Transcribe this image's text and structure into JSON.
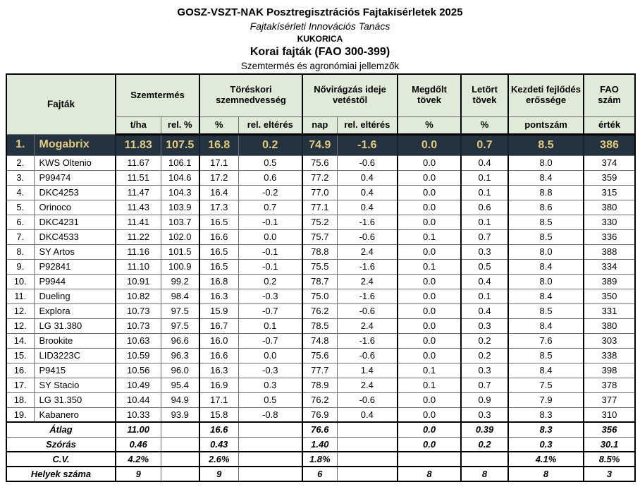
{
  "titles": {
    "line1": "GOSZ-VSZT-NAK Posztregisztrációs Fajtakísérletek 2025",
    "line2": "Fajtakísérleti Innovációs Tanács",
    "line3": "KUKORICA",
    "line4": "Korai fajták (FAO 300-399)",
    "line5": "Szemtermés és agronómiai jellemzők"
  },
  "table": {
    "header": {
      "fajtak": "Fajták",
      "groups": [
        {
          "label": "Szemtermés",
          "sub": [
            "t/ha",
            "rel. %"
          ]
        },
        {
          "label": "Töréskori szemnedvesség",
          "sub": [
            "%",
            "rel. eltérés"
          ]
        },
        {
          "label": "Nővirágzás ideje vetéstől",
          "sub": [
            "nap",
            "rel. eltérés"
          ]
        },
        {
          "label": "Megdőlt tövek",
          "sub": [
            "%"
          ]
        },
        {
          "label": "Letört tövek",
          "sub": [
            "%"
          ]
        },
        {
          "label": "Kezdeti fejlődés erőssége",
          "sub": [
            "pontszám"
          ]
        },
        {
          "label": "FAO szám",
          "sub": [
            "érték"
          ]
        }
      ]
    },
    "rows": [
      {
        "rank": "1.",
        "name": "Mogabrix",
        "highlight": true,
        "values": [
          "11.83",
          "107.5",
          "16.8",
          "0.2",
          "74.9",
          "-1.6",
          "0.0",
          "0.7",
          "8.5",
          "386"
        ]
      },
      {
        "rank": "2.",
        "name": "KWS Oltenio",
        "highlight": false,
        "values": [
          "11.67",
          "106.1",
          "17.1",
          "0.5",
          "75.6",
          "-0.6",
          "0.0",
          "0.4",
          "8.0",
          "374"
        ]
      },
      {
        "rank": "3.",
        "name": "P99474",
        "highlight": false,
        "values": [
          "11.51",
          "104.6",
          "17.2",
          "0.6",
          "77.2",
          "0.4",
          "0.0",
          "0.1",
          "8.4",
          "359"
        ]
      },
      {
        "rank": "4.",
        "name": "DKC4253",
        "highlight": false,
        "values": [
          "11.47",
          "104.3",
          "16.4",
          "-0.2",
          "77.0",
          "0.4",
          "0.0",
          "0.1",
          "8.8",
          "315"
        ]
      },
      {
        "rank": "5.",
        "name": "Orinoco",
        "highlight": false,
        "values": [
          "11.43",
          "103.9",
          "17.3",
          "0.7",
          "77.1",
          "0.4",
          "0.0",
          "0.6",
          "8.6",
          "380"
        ]
      },
      {
        "rank": "6.",
        "name": "DKC4231",
        "highlight": false,
        "values": [
          "11.41",
          "103.7",
          "16.5",
          "-0.1",
          "75.2",
          "-1.6",
          "0.0",
          "0.1",
          "8.5",
          "330"
        ]
      },
      {
        "rank": "7.",
        "name": "DKC4533",
        "highlight": false,
        "values": [
          "11.22",
          "102.0",
          "16.6",
          "0.0",
          "75.7",
          "-0.6",
          "0.1",
          "0.7",
          "8.5",
          "336"
        ]
      },
      {
        "rank": "8.",
        "name": "SY Artos",
        "highlight": false,
        "values": [
          "11.16",
          "101.5",
          "16.5",
          "-0.1",
          "78.8",
          "2.4",
          "0.0",
          "0.3",
          "8.0",
          "388"
        ]
      },
      {
        "rank": "9.",
        "name": "P92841",
        "highlight": false,
        "values": [
          "11.10",
          "100.9",
          "16.5",
          "-0.1",
          "75.5",
          "-1.6",
          "0.1",
          "0.5",
          "8.4",
          "334"
        ]
      },
      {
        "rank": "10.",
        "name": "P9944",
        "highlight": false,
        "values": [
          "10.91",
          "99.2",
          "16.8",
          "0.2",
          "78.7",
          "2.4",
          "0.0",
          "0.4",
          "8.0",
          "389"
        ]
      },
      {
        "rank": "11.",
        "name": "Dueling",
        "highlight": false,
        "values": [
          "10.82",
          "98.4",
          "16.3",
          "-0.3",
          "75.0",
          "-1.6",
          "0.0",
          "0.1",
          "8.4",
          "350"
        ]
      },
      {
        "rank": "12.",
        "name": "Explora",
        "highlight": false,
        "values": [
          "10.73",
          "97.5",
          "15.9",
          "-0.7",
          "76.2",
          "-0.6",
          "0.0",
          "0.4",
          "8.5",
          "331"
        ]
      },
      {
        "rank": "12.",
        "name": "LG 31.380",
        "highlight": false,
        "values": [
          "10.73",
          "97.5",
          "16.7",
          "0.1",
          "78.5",
          "2.4",
          "0.0",
          "0.3",
          "8.4",
          "380"
        ]
      },
      {
        "rank": "14.",
        "name": "Brookite",
        "highlight": false,
        "values": [
          "10.63",
          "96.6",
          "16.0",
          "-0.7",
          "74.8",
          "-1.6",
          "0.0",
          "0.2",
          "7.6",
          "303"
        ]
      },
      {
        "rank": "15.",
        "name": "LID3223C",
        "highlight": false,
        "values": [
          "10.59",
          "96.3",
          "16.6",
          "0.0",
          "75.6",
          "-0.6",
          "0.0",
          "0.2",
          "8.5",
          "338"
        ]
      },
      {
        "rank": "16.",
        "name": "P9415",
        "highlight": false,
        "values": [
          "10.56",
          "96.0",
          "16.3",
          "-0.3",
          "77.7",
          "1.4",
          "0.1",
          "0.3",
          "8.4",
          "398"
        ]
      },
      {
        "rank": "17.",
        "name": "SY Stacio",
        "highlight": false,
        "values": [
          "10.49",
          "95.4",
          "16.9",
          "0.3",
          "78.9",
          "2.4",
          "0.1",
          "0.7",
          "7.5",
          "378"
        ]
      },
      {
        "rank": "18.",
        "name": "LG 31.350",
        "highlight": false,
        "values": [
          "10.44",
          "94.9",
          "17.1",
          "0.5",
          "76.2",
          "-0.6",
          "0.0",
          "0.9",
          "7.9",
          "377"
        ]
      },
      {
        "rank": "19.",
        "name": "Kabanero",
        "highlight": false,
        "values": [
          "10.33",
          "93.9",
          "15.8",
          "-0.8",
          "76.9",
          "0.4",
          "0.0",
          "0.3",
          "8.3",
          "310"
        ]
      }
    ],
    "summary": [
      {
        "label": "Átlag",
        "values": [
          "11.00",
          "",
          "16.6",
          "",
          "76.6",
          "",
          "0.0",
          "0.39",
          "8.3",
          "356"
        ]
      },
      {
        "label": "Szórás",
        "values": [
          "0.46",
          "",
          "0.43",
          "",
          "1.40",
          "",
          "0.0",
          "0.2",
          "0.3",
          "30.1"
        ]
      },
      {
        "label": "C.V.",
        "values": [
          "4.2%",
          "",
          "2.6%",
          "",
          "1.8%",
          "",
          "",
          "",
          "4.1%",
          "8.5%"
        ]
      },
      {
        "label": "Helyek száma",
        "values": [
          "9",
          "",
          "9",
          "",
          "6",
          "",
          "8",
          "8",
          "8",
          "3"
        ]
      }
    ],
    "colors": {
      "header_bg": "#dfead8",
      "highlight_bg": "#243340",
      "highlight_text": "#e4c87c",
      "thick_border": "#000000",
      "thin_border": "#6e6e6e"
    }
  }
}
